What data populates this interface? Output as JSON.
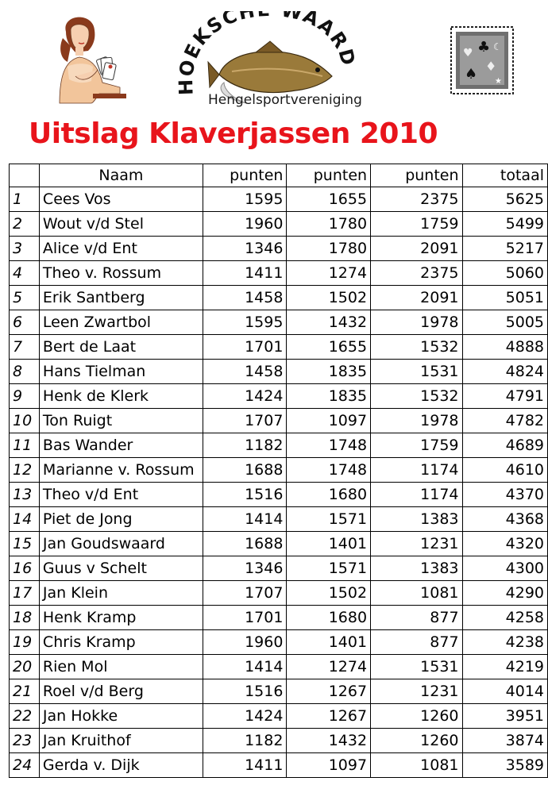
{
  "logo": {
    "name": "HOEKSCHE WAARD",
    "subtitle": "Hengelsportvereniging"
  },
  "title": "Uitslag Klaverjassen 2010",
  "table": {
    "headers": [
      "",
      "Naam",
      "punten",
      "punten",
      "punten",
      "totaal"
    ],
    "rows": [
      {
        "rank": "1",
        "name": "Cees Vos",
        "p1": "1595",
        "p2": "1655",
        "p3": "2375",
        "total": "5625"
      },
      {
        "rank": "2",
        "name": "Wout v/d Stel",
        "p1": "1960",
        "p2": "1780",
        "p3": "1759",
        "total": "5499"
      },
      {
        "rank": "3",
        "name": "Alice v/d Ent",
        "p1": "1346",
        "p2": "1780",
        "p3": "2091",
        "total": "5217"
      },
      {
        "rank": "4",
        "name": "Theo v. Rossum",
        "p1": "1411",
        "p2": "1274",
        "p3": "2375",
        "total": "5060"
      },
      {
        "rank": "5",
        "name": "Erik Santberg",
        "p1": "1458",
        "p2": "1502",
        "p3": "2091",
        "total": "5051"
      },
      {
        "rank": "6",
        "name": "Leen Zwartbol",
        "p1": "1595",
        "p2": "1432",
        "p3": "1978",
        "total": "5005"
      },
      {
        "rank": "7",
        "name": "Bert de Laat",
        "p1": "1701",
        "p2": "1655",
        "p3": "1532",
        "total": "4888"
      },
      {
        "rank": "8",
        "name": "Hans Tielman",
        "p1": "1458",
        "p2": "1835",
        "p3": "1531",
        "total": "4824"
      },
      {
        "rank": "9",
        "name": "Henk de Klerk",
        "p1": "1424",
        "p2": "1835",
        "p3": "1532",
        "total": "4791"
      },
      {
        "rank": "10",
        "name": "Ton Ruigt",
        "p1": "1707",
        "p2": "1097",
        "p3": "1978",
        "total": "4782"
      },
      {
        "rank": "11",
        "name": " Bas Wander",
        "p1": "1182",
        "p2": "1748",
        "p3": "1759",
        "total": "4689"
      },
      {
        "rank": "12",
        "name": "Marianne v. Rossum",
        "p1": "1688",
        "p2": "1748",
        "p3": "1174",
        "total": "4610"
      },
      {
        "rank": "13",
        "name": "Theo v/d Ent",
        "p1": "1516",
        "p2": "1680",
        "p3": "1174",
        "total": "4370"
      },
      {
        "rank": "14",
        "name": "Piet de Jong",
        "p1": "1414",
        "p2": "1571",
        "p3": "1383",
        "total": "4368"
      },
      {
        "rank": "15",
        "name": "Jan Goudswaard",
        "p1": "1688",
        "p2": "1401",
        "p3": "1231",
        "total": "4320"
      },
      {
        "rank": "16",
        "name": "Guus v Schelt",
        "p1": "1346",
        "p2": "1571",
        "p3": "1383",
        "total": "4300"
      },
      {
        "rank": "17",
        "name": "Jan Klein",
        "p1": "1707",
        "p2": "1502",
        "p3": "1081",
        "total": "4290"
      },
      {
        "rank": "18",
        "name": "Henk Kramp",
        "p1": "1701",
        "p2": "1680",
        "p3": "877",
        "total": "4258"
      },
      {
        "rank": "19",
        "name": "Chris Kramp",
        "p1": "1960",
        "p2": "1401",
        "p3": "877",
        "total": "4238"
      },
      {
        "rank": "20",
        "name": "Rien Mol",
        "p1": "1414",
        "p2": "1274",
        "p3": "1531",
        "total": "4219"
      },
      {
        "rank": "21",
        "name": "Roel v/d Berg",
        "p1": "1516",
        "p2": "1267",
        "p3": "1231",
        "total": "4014"
      },
      {
        "rank": "22",
        "name": "Jan Hokke",
        "p1": "1424",
        "p2": "1267",
        "p3": "1260",
        "total": "3951"
      },
      {
        "rank": "23",
        "name": "Jan Kruithof",
        "p1": "1182",
        "p2": "1432",
        "p3": "1260",
        "total": "3874"
      },
      {
        "rank": "24",
        "name": "Gerda v. Dijk",
        "p1": "1411",
        "p2": "1097",
        "p3": "1081",
        "total": "3589"
      }
    ]
  }
}
